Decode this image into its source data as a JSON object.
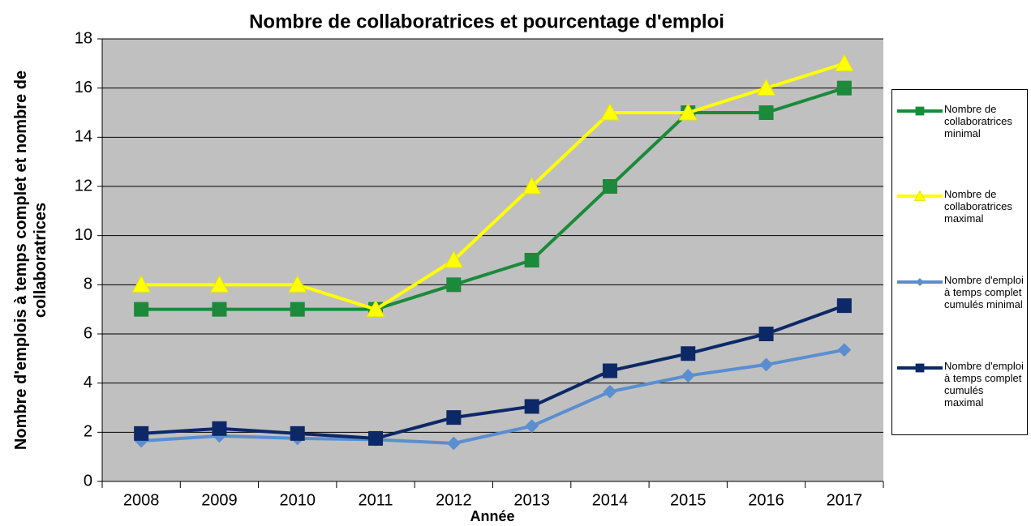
{
  "chart_data": {
    "type": "line",
    "title": "Nombre de collaboratrices et pourcentage d'emploi",
    "x_label": "Année",
    "y_label": "Nombre d'emplois à temps complet et nombre de collaboratrices",
    "categories": [
      "2008",
      "2009",
      "2010",
      "2011",
      "2012",
      "2013",
      "2014",
      "2015",
      "2016",
      "2017"
    ],
    "ylim": [
      0,
      18
    ],
    "yticks": [
      0,
      2,
      4,
      6,
      8,
      10,
      12,
      14,
      16,
      18
    ],
    "grid": true,
    "legend": "right",
    "series": [
      {
        "name": "Nombre de collaboratrices minimal",
        "color": "#1b8a3a",
        "marker": "square",
        "values": [
          7,
          7,
          7,
          7,
          8,
          9,
          12,
          15,
          15,
          16
        ]
      },
      {
        "name": "Nombre de collaboratrices maximal",
        "color": "#ffff00",
        "marker": "triangle",
        "values": [
          8,
          8,
          8,
          7,
          9,
          12,
          15,
          15,
          16,
          17
        ]
      },
      {
        "name": "Nombre d'emploi à temps complet cumulés minimal",
        "color": "#5a8ed0",
        "marker": "diamond",
        "values": [
          1.65,
          1.85,
          1.75,
          1.7,
          1.55,
          2.25,
          3.65,
          4.3,
          4.75,
          5.35
        ]
      },
      {
        "name": "Nombre d'emploi à temps complet cumulés maximal",
        "color": "#0c2866",
        "marker": "square",
        "values": [
          1.95,
          2.15,
          1.95,
          1.75,
          2.6,
          3.05,
          4.5,
          5.2,
          6.0,
          7.15
        ]
      }
    ]
  }
}
